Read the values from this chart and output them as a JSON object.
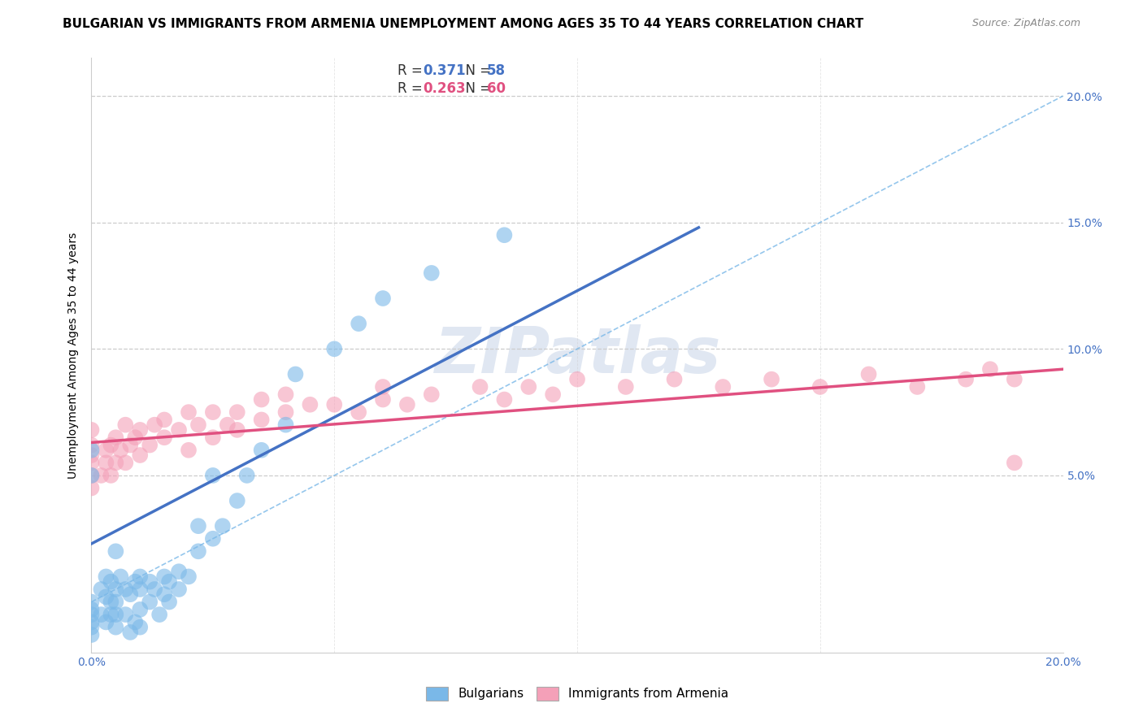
{
  "title": "BULGARIAN VS IMMIGRANTS FROM ARMENIA UNEMPLOYMENT AMONG AGES 35 TO 44 YEARS CORRELATION CHART",
  "source": "Source: ZipAtlas.com",
  "ylabel": "Unemployment Among Ages 35 to 44 years",
  "xlim": [
    0.0,
    0.2
  ],
  "ylim": [
    -0.02,
    0.215
  ],
  "legend1_label_r": "R = ",
  "legend1_r_val": "0.371",
  "legend1_n": "  N = ",
  "legend1_n_val": "58",
  "legend2_label_r": "R = ",
  "legend2_r_val": "0.263",
  "legend2_n": "  N = ",
  "legend2_n_val": "60",
  "legend_r_color1": "#4472c4",
  "legend_r_color2": "#e05080",
  "bulgarians_color": "#7ab8e8",
  "armenians_color": "#f4a0b8",
  "line1_color": "#4472c4",
  "line2_color": "#e05080",
  "diagonal_color": "#7ab8e8",
  "tick_color": "#4472c4",
  "background_color": "#ffffff",
  "title_fontsize": 11,
  "axis_label_fontsize": 10,
  "tick_fontsize": 10,
  "watermark_text": "ZIPatlas",
  "watermark_color": "#ccd8ea",
  "watermark_alpha": 0.6,
  "bulg_x": [
    0.0,
    0.0,
    0.0,
    0.0,
    0.0,
    0.0,
    0.0,
    0.0,
    0.002,
    0.002,
    0.003,
    0.003,
    0.003,
    0.004,
    0.004,
    0.004,
    0.005,
    0.005,
    0.005,
    0.005,
    0.005,
    0.006,
    0.007,
    0.007,
    0.008,
    0.008,
    0.009,
    0.009,
    0.01,
    0.01,
    0.01,
    0.01,
    0.012,
    0.012,
    0.013,
    0.014,
    0.015,
    0.015,
    0.016,
    0.016,
    0.018,
    0.018,
    0.02,
    0.022,
    0.022,
    0.025,
    0.025,
    0.027,
    0.03,
    0.032,
    0.035,
    0.04,
    0.042,
    0.05,
    0.055,
    0.06,
    0.07,
    0.085
  ],
  "bulg_y": [
    0.0,
    -0.003,
    -0.005,
    -0.008,
    -0.01,
    -0.013,
    0.05,
    0.06,
    -0.005,
    0.005,
    -0.008,
    0.002,
    0.01,
    -0.005,
    0.0,
    0.008,
    -0.01,
    -0.005,
    0.0,
    0.005,
    0.02,
    0.01,
    -0.005,
    0.005,
    -0.012,
    0.003,
    -0.008,
    0.008,
    -0.01,
    -0.003,
    0.005,
    0.01,
    0.0,
    0.008,
    0.005,
    -0.005,
    0.003,
    0.01,
    0.0,
    0.008,
    0.005,
    0.012,
    0.01,
    0.02,
    0.03,
    0.025,
    0.05,
    0.03,
    0.04,
    0.05,
    0.06,
    0.07,
    0.09,
    0.1,
    0.11,
    0.12,
    0.13,
    0.145
  ],
  "arm_x": [
    0.0,
    0.0,
    0.0,
    0.0,
    0.0,
    0.0,
    0.002,
    0.003,
    0.003,
    0.004,
    0.004,
    0.005,
    0.005,
    0.006,
    0.007,
    0.007,
    0.008,
    0.009,
    0.01,
    0.01,
    0.012,
    0.013,
    0.015,
    0.015,
    0.018,
    0.02,
    0.02,
    0.022,
    0.025,
    0.025,
    0.028,
    0.03,
    0.03,
    0.035,
    0.035,
    0.04,
    0.04,
    0.045,
    0.05,
    0.055,
    0.06,
    0.06,
    0.065,
    0.07,
    0.08,
    0.085,
    0.09,
    0.095,
    0.1,
    0.11,
    0.12,
    0.13,
    0.14,
    0.15,
    0.16,
    0.17,
    0.18,
    0.185,
    0.19,
    0.19
  ],
  "arm_y": [
    0.045,
    0.05,
    0.055,
    0.058,
    0.062,
    0.068,
    0.05,
    0.055,
    0.06,
    0.05,
    0.062,
    0.055,
    0.065,
    0.06,
    0.055,
    0.07,
    0.062,
    0.065,
    0.058,
    0.068,
    0.062,
    0.07,
    0.065,
    0.072,
    0.068,
    0.06,
    0.075,
    0.07,
    0.065,
    0.075,
    0.07,
    0.068,
    0.075,
    0.072,
    0.08,
    0.075,
    0.082,
    0.078,
    0.078,
    0.075,
    0.08,
    0.085,
    0.078,
    0.082,
    0.085,
    0.08,
    0.085,
    0.082,
    0.088,
    0.085,
    0.088,
    0.085,
    0.088,
    0.085,
    0.09,
    0.085,
    0.088,
    0.092,
    0.088,
    0.055
  ],
  "blue_line_x": [
    0.0,
    0.125
  ],
  "blue_line_y": [
    0.023,
    0.148
  ],
  "pink_line_x": [
    0.0,
    0.2
  ],
  "pink_line_y": [
    0.063,
    0.092
  ]
}
